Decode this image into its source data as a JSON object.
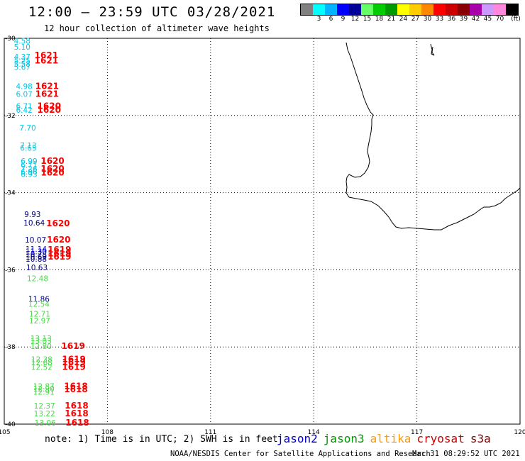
{
  "header": {
    "title": "12:00 — 23:59 UTC 03/28/2021",
    "subtitle": "12 hour collection of altimeter wave heights"
  },
  "legend": {
    "unit": "(ft)",
    "swatches": [
      {
        "label": "",
        "color": "#808080"
      },
      {
        "label": "3",
        "color": "#00ffff"
      },
      {
        "label": "6",
        "color": "#00b4ff"
      },
      {
        "label": "9",
        "color": "#0000ff"
      },
      {
        "label": "12",
        "color": "#000099"
      },
      {
        "label": "15",
        "color": "#66ff66"
      },
      {
        "label": "18",
        "color": "#00cc00"
      },
      {
        "label": "21",
        "color": "#009900"
      },
      {
        "label": "24",
        "color": "#ffff00"
      },
      {
        "label": "27",
        "color": "#ffcc00"
      },
      {
        "label": "30",
        "color": "#ff8800"
      },
      {
        "label": "33",
        "color": "#ff0000"
      },
      {
        "label": "36",
        "color": "#cc0000"
      },
      {
        "label": "39",
        "color": "#880000"
      },
      {
        "label": "42",
        "color": "#aa00aa"
      },
      {
        "label": "45",
        "color": "#cc99ff"
      },
      {
        "label": "70",
        "color": "#ff88dd"
      },
      {
        "label": "",
        "color": "#000000"
      }
    ]
  },
  "map": {
    "lon_range": [
      105,
      120
    ],
    "lat_range": [
      -40,
      -30
    ],
    "lon_ticks": [
      "105",
      "108",
      "111",
      "114",
      "117",
      "120"
    ],
    "lat_ticks": [
      "-30",
      "-32",
      "-34",
      "-36",
      "-38",
      "-40"
    ],
    "coastline": "Western and southwestern coast of Australia",
    "colors": {
      "cyan": "#00c8e6",
      "blue": "#0000dd",
      "navy": "#000080",
      "green": "#44dd44",
      "red": "#ff0000"
    },
    "observations": [
      {
        "lat": -30.06,
        "lon": 105.28,
        "value": "4.58",
        "color": "cyan"
      },
      {
        "lat": -30.22,
        "lon": 105.28,
        "value": "5.10",
        "color": "cyan"
      },
      {
        "lat": -30.48,
        "lon": 105.28,
        "value": "4.37",
        "color": "cyan"
      },
      {
        "lat": -30.58,
        "lon": 105.28,
        "value": "5.25",
        "color": "cyan"
      },
      {
        "lat": -30.66,
        "lon": 105.28,
        "value": "5.58",
        "color": "cyan"
      },
      {
        "lat": -30.74,
        "lon": 105.28,
        "value": "5.67",
        "color": "cyan"
      },
      {
        "lat": -31.24,
        "lon": 105.34,
        "value": "4.98",
        "color": "cyan"
      },
      {
        "lat": -31.44,
        "lon": 105.34,
        "value": "6.07",
        "color": "cyan"
      },
      {
        "lat": -31.76,
        "lon": 105.34,
        "value": "6.71",
        "color": "cyan"
      },
      {
        "lat": -31.86,
        "lon": 105.34,
        "value": "6.42",
        "color": "cyan"
      },
      {
        "lat": -32.32,
        "lon": 105.44,
        "value": "7.70",
        "color": "cyan"
      },
      {
        "lat": -32.78,
        "lon": 105.46,
        "value": "7.13",
        "color": "cyan"
      },
      {
        "lat": -32.84,
        "lon": 105.46,
        "value": "6.65",
        "color": "cyan"
      },
      {
        "lat": -33.18,
        "lon": 105.48,
        "value": "6.99",
        "color": "cyan"
      },
      {
        "lat": -33.28,
        "lon": 105.48,
        "value": "6.71",
        "color": "cyan"
      },
      {
        "lat": -33.38,
        "lon": 105.48,
        "value": "7.26",
        "color": "cyan"
      },
      {
        "lat": -33.46,
        "lon": 105.48,
        "value": "6.96",
        "color": "cyan"
      },
      {
        "lat": -33.52,
        "lon": 105.48,
        "value": "6.93",
        "color": "cyan"
      },
      {
        "lat": -34.56,
        "lon": 105.58,
        "value": "9.93",
        "color": "navy"
      },
      {
        "lat": -34.78,
        "lon": 105.56,
        "value": "10.64",
        "color": "navy"
      },
      {
        "lat": -35.22,
        "lon": 105.6,
        "value": "10.07",
        "color": "navy"
      },
      {
        "lat": -35.46,
        "lon": 105.62,
        "value": "11.14",
        "color": "blue"
      },
      {
        "lat": -35.52,
        "lon": 105.62,
        "value": "11.30",
        "color": "blue"
      },
      {
        "lat": -35.6,
        "lon": 105.62,
        "value": "10.78",
        "color": "navy"
      },
      {
        "lat": -35.66,
        "lon": 105.62,
        "value": "10.69",
        "color": "navy"
      },
      {
        "lat": -35.72,
        "lon": 105.62,
        "value": "10.88",
        "color": "navy"
      },
      {
        "lat": -35.94,
        "lon": 105.64,
        "value": "10.63",
        "color": "navy"
      },
      {
        "lat": -36.22,
        "lon": 105.66,
        "value": "12.48",
        "color": "green"
      },
      {
        "lat": -36.76,
        "lon": 105.7,
        "value": "11.86",
        "color": "navy"
      },
      {
        "lat": -36.88,
        "lon": 105.7,
        "value": "12.54",
        "color": "green"
      },
      {
        "lat": -37.14,
        "lon": 105.72,
        "value": "12.71",
        "color": "green"
      },
      {
        "lat": -37.32,
        "lon": 105.72,
        "value": "12.97",
        "color": "green"
      },
      {
        "lat": -37.78,
        "lon": 105.76,
        "value": "13.13",
        "color": "green"
      },
      {
        "lat": -37.84,
        "lon": 105.76,
        "value": "13.03",
        "color": "green"
      },
      {
        "lat": -37.98,
        "lon": 105.76,
        "value": "12.80",
        "color": "green"
      },
      {
        "lat": -38.32,
        "lon": 105.78,
        "value": "12.38",
        "color": "green"
      },
      {
        "lat": -38.4,
        "lon": 105.78,
        "value": "12.68",
        "color": "green"
      },
      {
        "lat": -38.52,
        "lon": 105.78,
        "value": "12.52",
        "color": "green"
      },
      {
        "lat": -39.02,
        "lon": 105.84,
        "value": "12.87",
        "color": "green"
      },
      {
        "lat": -39.08,
        "lon": 105.84,
        "value": "12.90",
        "color": "green"
      },
      {
        "lat": -39.16,
        "lon": 105.84,
        "value": "12.91",
        "color": "green"
      },
      {
        "lat": -39.52,
        "lon": 105.86,
        "value": "12.37",
        "color": "green"
      },
      {
        "lat": -39.72,
        "lon": 105.86,
        "value": "13.22",
        "color": "green"
      },
      {
        "lat": -39.96,
        "lon": 105.88,
        "value": "13.06",
        "color": "green"
      }
    ],
    "times": [
      {
        "lat": -30.44,
        "lon": 105.88,
        "value": "1621"
      },
      {
        "lat": -30.58,
        "lon": 105.88,
        "value": "1621"
      },
      {
        "lat": -31.24,
        "lon": 105.9,
        "value": "1621"
      },
      {
        "lat": -31.44,
        "lon": 105.9,
        "value": "1621"
      },
      {
        "lat": -31.76,
        "lon": 105.96,
        "value": "1620"
      },
      {
        "lat": -31.86,
        "lon": 105.96,
        "value": "1620"
      },
      {
        "lat": -33.18,
        "lon": 106.06,
        "value": "1620"
      },
      {
        "lat": -33.38,
        "lon": 106.06,
        "value": "1620"
      },
      {
        "lat": -33.48,
        "lon": 106.06,
        "value": "1620"
      },
      {
        "lat": -34.8,
        "lon": 106.22,
        "value": "1620"
      },
      {
        "lat": -35.22,
        "lon": 106.24,
        "value": "1620"
      },
      {
        "lat": -35.48,
        "lon": 106.26,
        "value": "1619"
      },
      {
        "lat": -35.58,
        "lon": 106.26,
        "value": "1619"
      },
      {
        "lat": -35.66,
        "lon": 106.26,
        "value": "1619"
      },
      {
        "lat": -37.98,
        "lon": 106.66,
        "value": "1619"
      },
      {
        "lat": -38.32,
        "lon": 106.68,
        "value": "1619"
      },
      {
        "lat": -38.4,
        "lon": 106.68,
        "value": "1619"
      },
      {
        "lat": -38.52,
        "lon": 106.68,
        "value": "1619"
      },
      {
        "lat": -39.02,
        "lon": 106.74,
        "value": "1618"
      },
      {
        "lat": -39.1,
        "lon": 106.74,
        "value": "1618"
      },
      {
        "lat": -39.52,
        "lon": 106.76,
        "value": "1618"
      },
      {
        "lat": -39.72,
        "lon": 106.76,
        "value": "1618"
      },
      {
        "lat": -39.96,
        "lon": 106.78,
        "value": "1618"
      }
    ]
  },
  "footer": {
    "note": "note: 1) Time is in UTC; 2) SWH is in feet",
    "satellites": [
      {
        "name": "jason2",
        "color": "#0000cc"
      },
      {
        "name": "jason3",
        "color": "#009900"
      },
      {
        "name": "altika",
        "color": "#ff9900"
      },
      {
        "name": "cryosat",
        "color": "#cc0000"
      },
      {
        "name": "s3a",
        "color": "#880000"
      }
    ],
    "credit": "NOAA/NESDIS Center for Satellite Applications and Research",
    "generated": "Mar 31 08:29:52 UTC 2021"
  }
}
